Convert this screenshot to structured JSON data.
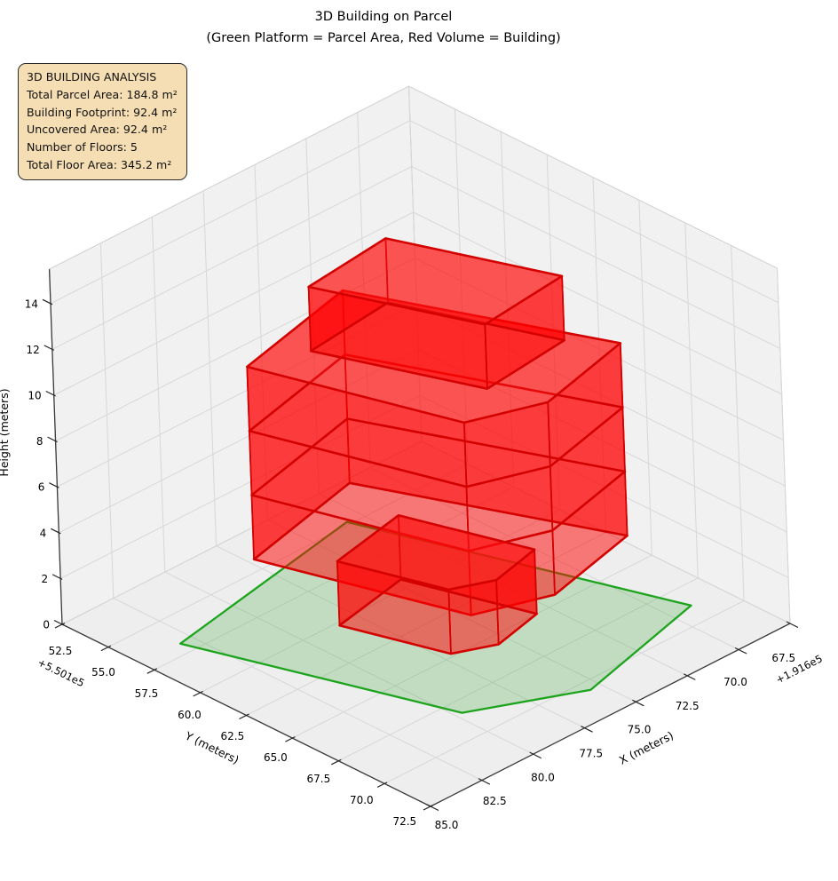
{
  "title": {
    "line1": "3D Building on Parcel",
    "line2": "(Green Platform = Parcel Area, Red Volume = Building)"
  },
  "info_box": {
    "title": "3D BUILDING ANALYSIS",
    "lines": [
      "Total Parcel Area: 184.8 m²",
      "Building Footprint: 92.4 m²",
      "Uncovered Area: 92.4 m²",
      "Number of Floors: 5",
      "Total Floor Area: 345.2 m²"
    ],
    "bg_color": "#f5deb3"
  },
  "chart_data": {
    "type": "3d-building-plot",
    "grid": true,
    "axes": {
      "x": {
        "label": "X (meters)",
        "ticks": [
          "85.0",
          "82.5",
          "80.0",
          "77.5",
          "75.0",
          "72.5",
          "70.0",
          "67.5"
        ],
        "offset_text": "+1.916e5",
        "range": [
          67.5,
          85
        ]
      },
      "y": {
        "label": "Y (meters)",
        "ticks": [
          "52.5",
          "55.0",
          "57.5",
          "60.0",
          "62.5",
          "65.0",
          "67.5",
          "70.0",
          "72.5"
        ],
        "offset_text": "+5.501e5",
        "range": [
          52.5,
          72.5
        ]
      },
      "z": {
        "label": "Height (meters)",
        "ticks": [
          "0",
          "2",
          "4",
          "6",
          "8",
          "10",
          "12",
          "14"
        ],
        "range": [
          0,
          15.5
        ]
      }
    },
    "parcel": {
      "area_m2": 184.8,
      "z": 0,
      "vertices": [
        [
          83.1,
          56.8
        ],
        [
          79.7,
          68.3
        ],
        [
          75.5,
          70.6
        ],
        [
          69.0,
          68.8
        ],
        [
          73.2,
          54.8
        ]
      ]
    },
    "building": {
      "footprint_m2": 92.4,
      "uncovered_m2": 92.4,
      "floors": 5,
      "floor_height_m": 2.8,
      "total_floor_area_m2": 345.2,
      "masses": [
        {
          "name": "floors-2-4",
          "footprint": [
            [
              80.3,
              57.8
            ],
            [
              77.8,
              66.8
            ],
            [
              74.8,
              68.0
            ],
            [
              70.2,
              66.8
            ],
            [
              74.3,
              56.3
            ]
          ],
          "z0": 2.8,
          "z1": 11.2,
          "floor_lines": [
            5.6,
            8.4
          ]
        },
        {
          "name": "floor-5",
          "footprint": [
            [
              78.0,
              58.7
            ],
            [
              75.6,
              65.6
            ],
            [
              71.4,
              65.1
            ],
            [
              73.8,
              58.2
            ]
          ],
          "z0": 11.2,
          "z1": 14,
          "floor_lines": []
        },
        {
          "name": "floor-1",
          "footprint": [
            [
              78.4,
              60.2
            ],
            [
              77.1,
              64.8
            ],
            [
              75.5,
              65.6
            ],
            [
              73.1,
              65.0
            ],
            [
              74.7,
              59.4
            ]
          ],
          "z0": 0,
          "z1": 2.8,
          "floor_lines": []
        }
      ]
    },
    "colors": {
      "parcel_fill": "rgba(40,160,40,0.22)",
      "parcel_edge": "#1da41d",
      "building_side": "rgba(255,0,0,0.50)",
      "building_top": "rgba(255,25,25,0.40)",
      "building_edge": "#d40000",
      "pane_wall": "#f1f1f1",
      "pane_floor": "#eeeeee",
      "grid_line": "#d7d7d7",
      "pane_edge": "#cfcfcf",
      "spine": "#3a3a3a"
    }
  }
}
